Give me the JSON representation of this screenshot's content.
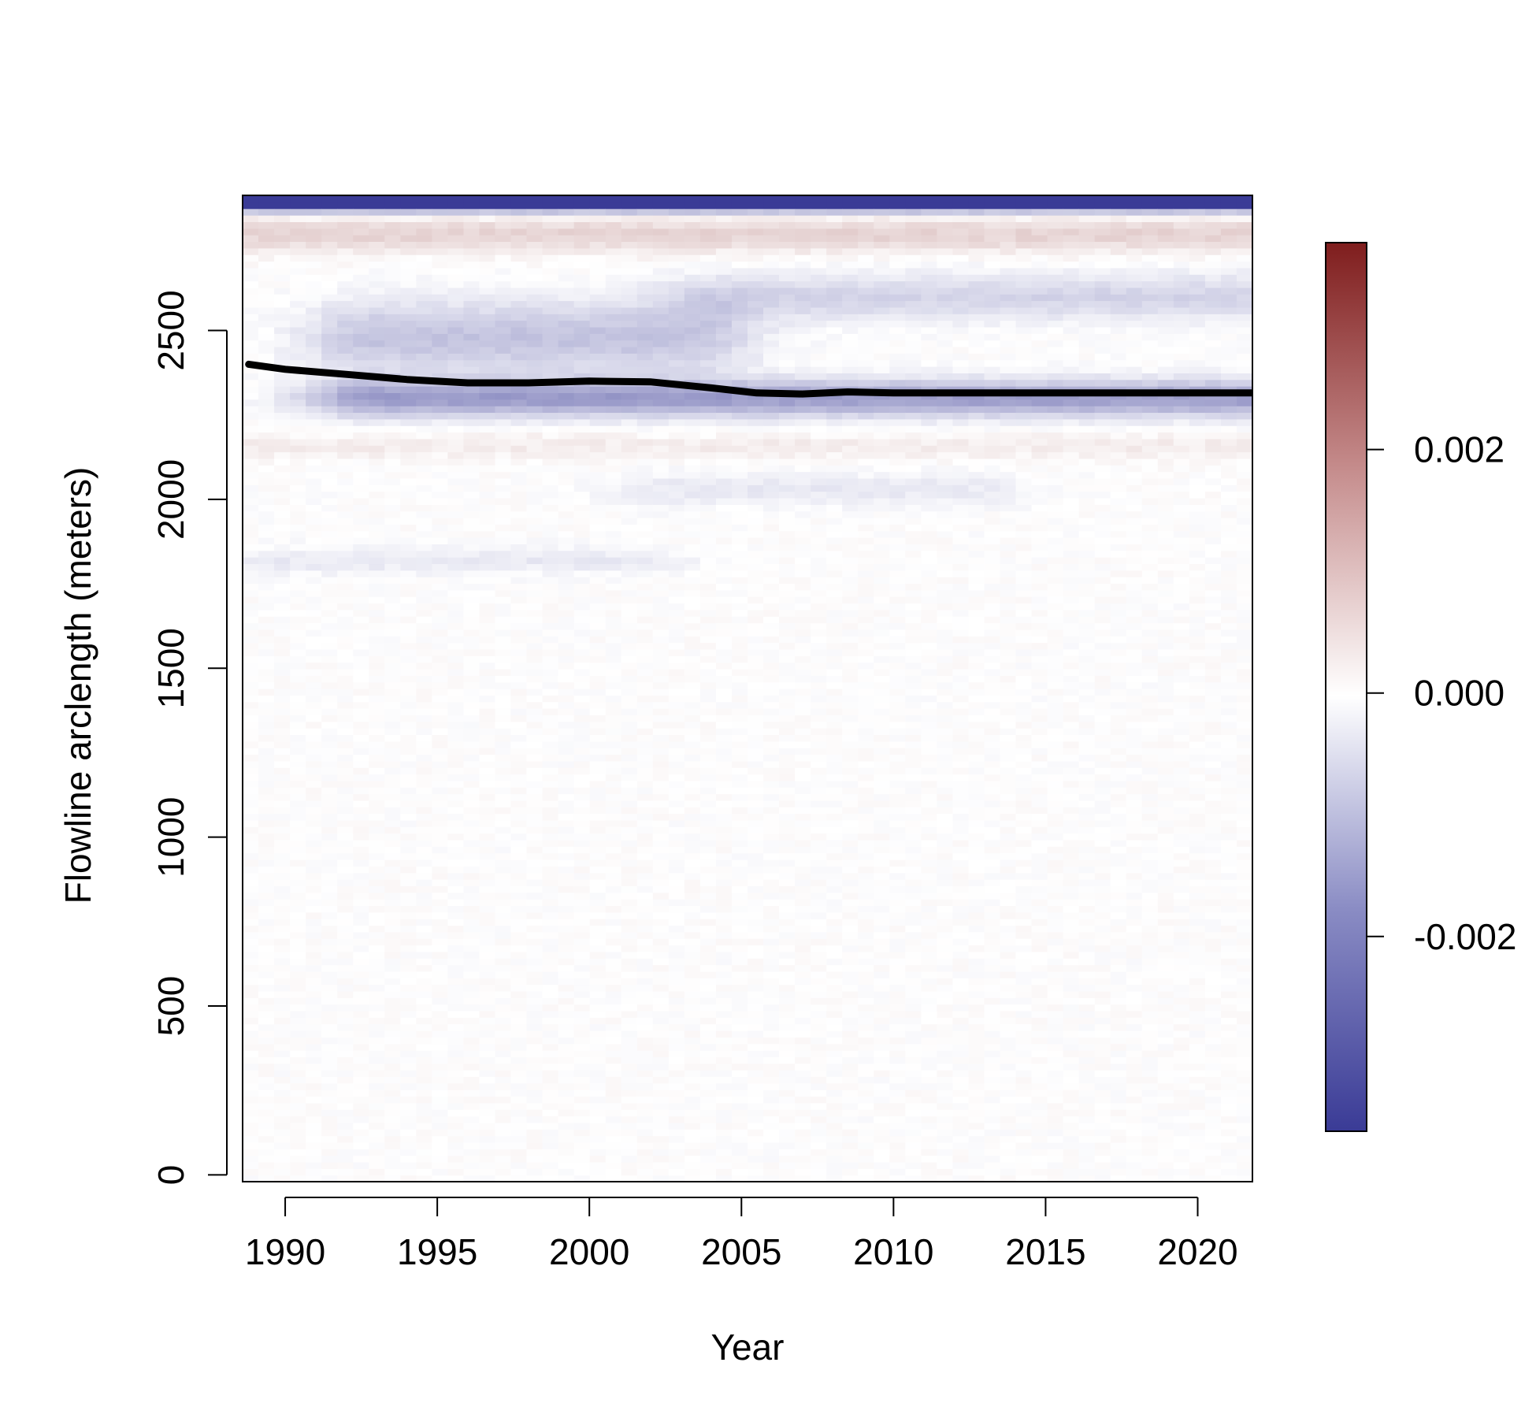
{
  "chart_data": {
    "type": "heatmap",
    "title": "",
    "xlabel": "Year",
    "ylabel": "Flowline arclength (meters)",
    "xlim": [
      1988.6,
      2021.8
    ],
    "ylim": [
      -20,
      2900
    ],
    "x_ticks": [
      1990,
      1995,
      2000,
      2005,
      2010,
      2015,
      2020
    ],
    "x_tick_labels": [
      "1990",
      "1995",
      "2000",
      "2005",
      "2010",
      "2015",
      "2020"
    ],
    "y_ticks": [
      0,
      500,
      1000,
      1500,
      2000,
      2500
    ],
    "y_tick_labels": [
      "0",
      "500",
      "1000",
      "1500",
      "2000",
      "2500"
    ],
    "colorbar": {
      "range": [
        -0.0036,
        0.0037
      ],
      "ticks": [
        -0.002,
        0.0,
        0.002
      ],
      "tick_labels": [
        "-0.002",
        "0.000",
        "0.002"
      ],
      "low_color": "#3a3b96",
      "mid_color": "#ffffff",
      "high_color": "#7f1d1d"
    },
    "grid": false,
    "bands": [
      {
        "y_center": 2880,
        "sigma": 25,
        "amp": -0.0045,
        "x_start": 1988.6,
        "x_end": 2021.8,
        "note": "top strip"
      },
      {
        "y_center": 2785,
        "sigma": 55,
        "amp": 0.0007,
        "x_start": 1988.6,
        "x_end": 2021.8
      },
      {
        "y_center": 2600,
        "sigma": 70,
        "amp": -0.0008,
        "x_start": 2005,
        "x_end": 2021.8
      },
      {
        "y_center": 2480,
        "sigma": 110,
        "amp": -0.0011,
        "x_start": 1993,
        "x_end": 2003
      },
      {
        "y_center": 2300,
        "sigma": 55,
        "amp": -0.0018,
        "x_start": 1993,
        "x_end": 2021.8
      },
      {
        "y_center": 2160,
        "sigma": 40,
        "amp": 0.0003,
        "x_start": 1988.6,
        "x_end": 2021.8
      },
      {
        "y_center": 2030,
        "sigma": 50,
        "amp": -0.0004,
        "x_start": 2003,
        "x_end": 2012
      },
      {
        "y_center": 1820,
        "sigma": 40,
        "amp": -0.0004,
        "x_start": 1990,
        "x_end": 2001
      }
    ],
    "overlay_line": {
      "x": [
        1988.8,
        1990,
        1992,
        1994,
        1996,
        1998,
        2000,
        2002,
        2004,
        2005.5,
        2007,
        2008.5,
        2010,
        2015,
        2020,
        2021.8
      ],
      "y": [
        2400,
        2385,
        2370,
        2355,
        2345,
        2345,
        2350,
        2348,
        2330,
        2315,
        2312,
        2318,
        2315,
        2315,
        2315,
        2315
      ]
    }
  }
}
